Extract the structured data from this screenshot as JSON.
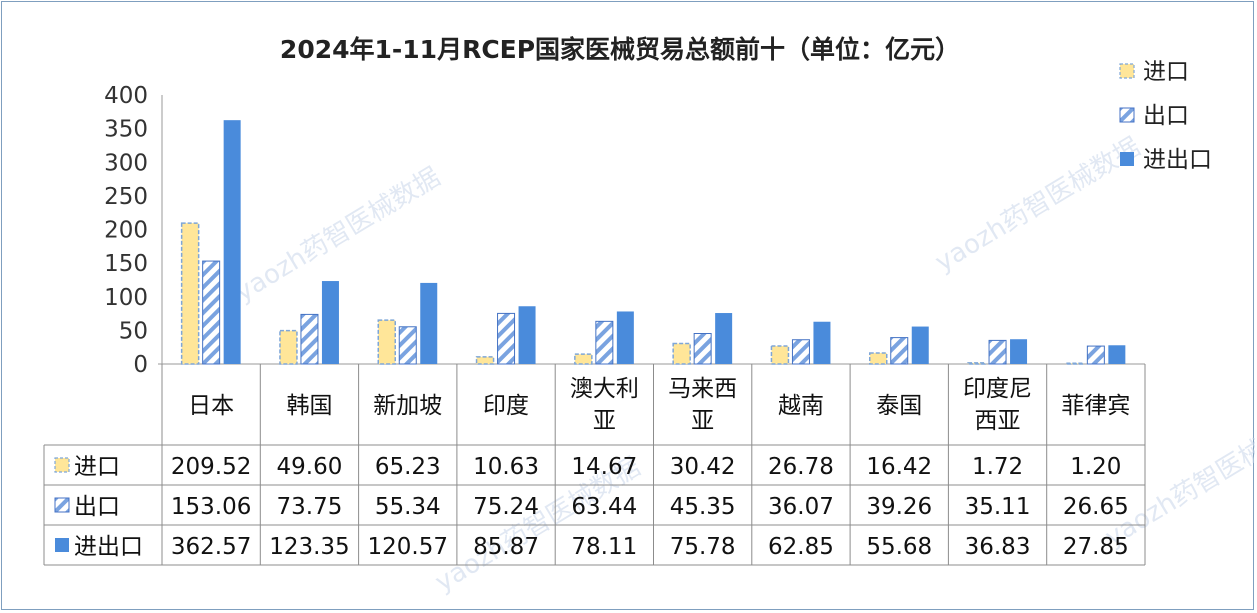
{
  "chart_data": {
    "type": "bar",
    "title": "2024年1-11月RCEP国家医械贸易总额前十（单位：亿元）",
    "categories": [
      "日本",
      "韩国",
      "新加坡",
      "印度",
      "澳大利亚",
      "马来西亚",
      "越南",
      "泰国",
      "印度尼西亚",
      "菲律宾"
    ],
    "category_lines": [
      [
        "日本"
      ],
      [
        "韩国"
      ],
      [
        "新加坡"
      ],
      [
        "印度"
      ],
      [
        "澳大利",
        "亚"
      ],
      [
        "马来西",
        "亚"
      ],
      [
        "越南"
      ],
      [
        "泰国"
      ],
      [
        "印度尼",
        "西亚"
      ],
      [
        "菲律宾"
      ]
    ],
    "series": [
      {
        "name": "进口",
        "values": [
          209.52,
          49.6,
          65.23,
          10.63,
          14.67,
          30.42,
          26.78,
          16.42,
          1.72,
          1.2
        ],
        "labels": [
          "209.52",
          "49.60",
          "65.23",
          "10.63",
          "14.67",
          "30.42",
          "26.78",
          "16.42",
          "1.72",
          "1.20"
        ],
        "color": "#ffe699",
        "stroke": "#7ea6d8",
        "pattern": "dashed-fill"
      },
      {
        "name": "出口",
        "values": [
          153.06,
          73.75,
          55.34,
          75.24,
          63.44,
          45.35,
          36.07,
          39.26,
          35.11,
          26.65
        ],
        "labels": [
          "153.06",
          "73.75",
          "55.34",
          "75.24",
          "63.44",
          "45.35",
          "36.07",
          "39.26",
          "35.11",
          "26.65"
        ],
        "color": "#5b8fd9",
        "stroke": "#4472c4",
        "pattern": "diagonal-hatch"
      },
      {
        "name": "进出口",
        "values": [
          362.57,
          123.35,
          120.57,
          85.87,
          78.11,
          75.78,
          62.85,
          55.68,
          36.83,
          27.85
        ],
        "labels": [
          "362.57",
          "123.35",
          "120.57",
          "85.87",
          "78.11",
          "75.78",
          "62.85",
          "55.68",
          "36.83",
          "27.85"
        ],
        "color": "#4a8bdb",
        "stroke": "#4a8bdb",
        "pattern": "solid"
      }
    ],
    "yticks": [
      "0",
      "50",
      "100",
      "150",
      "200",
      "250",
      "300",
      "350",
      "400"
    ],
    "ylim": [
      0,
      400
    ],
    "xlabel": "",
    "ylabel": "",
    "grid": false,
    "legend_position": "top-right",
    "data_table": true
  },
  "watermarks": [
    "yaozh药智医械数据",
    "yaozh药智医械数据",
    "yaozh药智医械数据",
    "yaozh药智医械数据"
  ]
}
